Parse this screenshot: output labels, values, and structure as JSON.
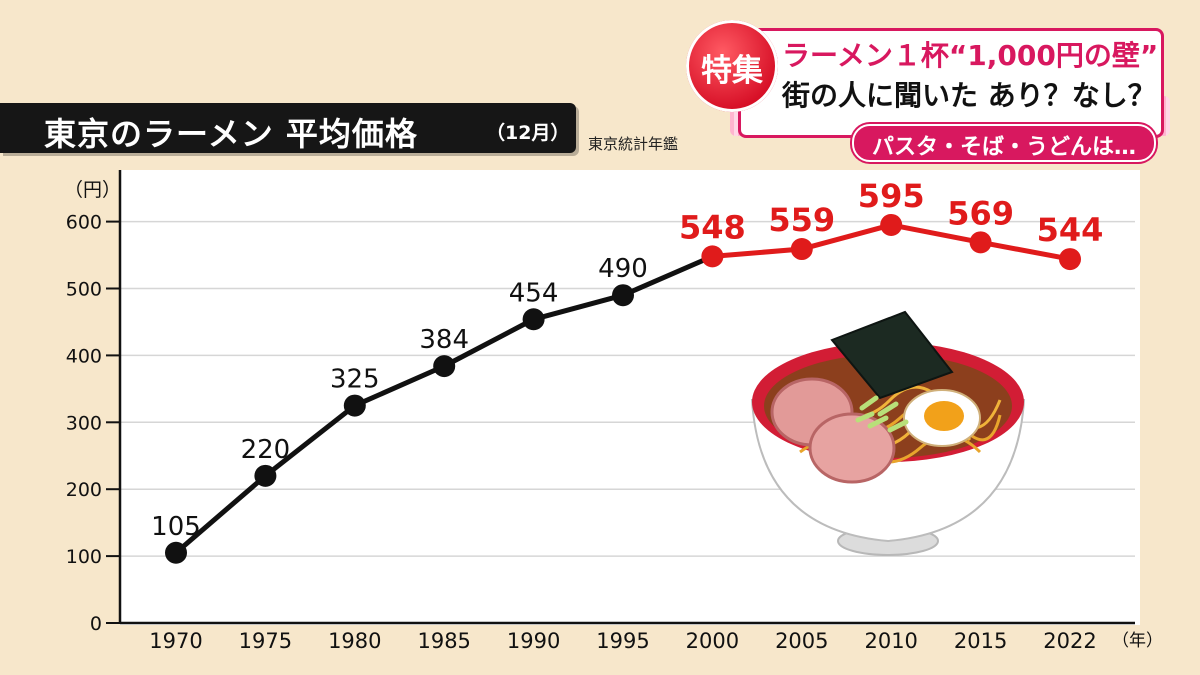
{
  "header": {
    "title": "東京のラーメン 平均価格",
    "title_note": "（12月）",
    "source": "東京統計年鑑"
  },
  "banner": {
    "badge": "特集",
    "line1": "ラーメン１杯“1,000円の壁”",
    "line2": "街の人に聞いた あり？なし？",
    "pill": "パスタ・そば・うどんは…",
    "accent_color": "#d8185f"
  },
  "chart_data": {
    "type": "line",
    "title": "東京のラーメン 平均価格",
    "xlabel": "（年）",
    "ylabel": "（円）",
    "categories": [
      "1970",
      "1975",
      "1980",
      "1985",
      "1990",
      "1995",
      "2000",
      "2005",
      "2010",
      "2015",
      "2022"
    ],
    "values": [
      105,
      220,
      325,
      384,
      454,
      490,
      548,
      559,
      595,
      569,
      544
    ],
    "data_labels": [
      "105",
      "220",
      "325",
      "384",
      "454",
      "490",
      "548",
      "559",
      "595",
      "569",
      "544"
    ],
    "yticks": [
      0,
      100,
      200,
      300,
      400,
      500,
      600
    ],
    "ylim": [
      0,
      650
    ],
    "grid": true,
    "highlight_from_index": 6,
    "colors": {
      "line_normal": "#111111",
      "line_highlight": "#e01b1b"
    }
  },
  "illustration": {
    "icon": "ramen-bowl-icon"
  }
}
